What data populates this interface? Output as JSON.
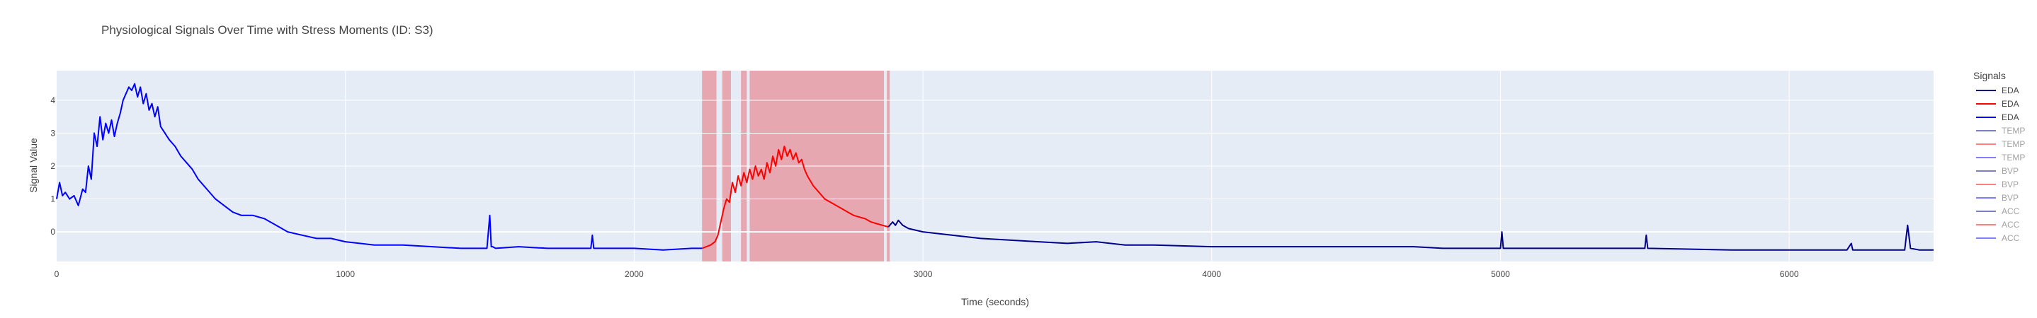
{
  "chart_data": {
    "type": "line",
    "title": "Physiological Signals Over Time with Stress Moments (ID: S3)",
    "xlabel": "Time (seconds)",
    "ylabel": "Signal Value",
    "xlim": [
      0,
      6500
    ],
    "ylim": [
      -0.9,
      4.9
    ],
    "x_ticks": [
      0,
      1000,
      2000,
      3000,
      4000,
      5000,
      6000
    ],
    "y_ticks": [
      0,
      1,
      2,
      3,
      4
    ],
    "grid": true,
    "legend": {
      "title": "Signals",
      "placement": "right",
      "entries": [
        {
          "name": "EDA",
          "color": "#00008b",
          "dimmed": false
        },
        {
          "name": "EDA",
          "color": "#ff0000",
          "dimmed": false
        },
        {
          "name": "EDA",
          "color": "#0000ff",
          "dimmed": false
        },
        {
          "name": "TEMP",
          "color": "#00008b",
          "dimmed": true
        },
        {
          "name": "TEMP",
          "color": "#ff0000",
          "dimmed": true
        },
        {
          "name": "TEMP",
          "color": "#0000ff",
          "dimmed": true
        },
        {
          "name": "BVP",
          "color": "#00008b",
          "dimmed": true
        },
        {
          "name": "BVP",
          "color": "#ff0000",
          "dimmed": true
        },
        {
          "name": "BVP",
          "color": "#0000ff",
          "dimmed": true
        },
        {
          "name": "ACC",
          "color": "#00008b",
          "dimmed": true
        },
        {
          "name": "ACC",
          "color": "#ff0000",
          "dimmed": true
        },
        {
          "name": "ACC",
          "color": "#0000ff",
          "dimmed": true
        }
      ]
    },
    "stress_regions": [
      [
        2235,
        2285
      ],
      [
        2305,
        2335
      ],
      [
        2370,
        2390
      ],
      [
        2400,
        2865
      ],
      [
        2875,
        2885
      ]
    ],
    "stress_color": "#e88a93",
    "series": [
      {
        "name": "EDA",
        "segment": "baseline",
        "color": "#0000ff",
        "x": [
          0,
          10,
          20,
          30,
          45,
          60,
          75,
          90,
          100,
          110,
          120,
          130,
          140,
          150,
          160,
          170,
          180,
          190,
          200,
          210,
          220,
          230,
          240,
          250,
          260,
          270,
          280,
          290,
          300,
          310,
          320,
          330,
          340,
          350,
          360,
          375,
          390,
          410,
          430,
          450,
          470,
          490,
          520,
          550,
          580,
          610,
          640,
          680,
          720,
          760,
          800,
          850,
          900,
          950,
          1000,
          1100,
          1200,
          1300,
          1400,
          1490,
          1500,
          1505,
          1510,
          1520,
          1600,
          1700,
          1800,
          1850,
          1855,
          1860,
          1900,
          2000,
          2100,
          2200,
          2235
        ],
        "y": [
          1.0,
          1.5,
          1.1,
          1.2,
          1.0,
          1.1,
          0.8,
          1.3,
          1.2,
          2.0,
          1.6,
          3.0,
          2.6,
          3.5,
          2.8,
          3.3,
          3.0,
          3.4,
          2.9,
          3.3,
          3.6,
          4.0,
          4.2,
          4.4,
          4.3,
          4.5,
          4.1,
          4.4,
          3.9,
          4.2,
          3.7,
          3.9,
          3.5,
          3.8,
          3.2,
          3.0,
          2.8,
          2.6,
          2.3,
          2.1,
          1.9,
          1.6,
          1.3,
          1.0,
          0.8,
          0.6,
          0.5,
          0.5,
          0.4,
          0.2,
          0.0,
          -0.1,
          -0.2,
          -0.2,
          -0.3,
          -0.4,
          -0.4,
          -0.45,
          -0.5,
          -0.5,
          0.5,
          -0.45,
          -0.45,
          -0.5,
          -0.45,
          -0.5,
          -0.5,
          -0.5,
          -0.1,
          -0.5,
          -0.5,
          -0.5,
          -0.55,
          -0.5,
          -0.5
        ]
      },
      {
        "name": "EDA",
        "segment": "stress",
        "color": "#ff0000",
        "x": [
          2235,
          2250,
          2265,
          2280,
          2290,
          2300,
          2310,
          2320,
          2330,
          2340,
          2350,
          2360,
          2370,
          2380,
          2390,
          2400,
          2410,
          2420,
          2430,
          2440,
          2450,
          2460,
          2470,
          2480,
          2490,
          2500,
          2510,
          2520,
          2530,
          2540,
          2550,
          2560,
          2570,
          2580,
          2590,
          2600,
          2620,
          2640,
          2660,
          2680,
          2700,
          2720,
          2740,
          2760,
          2780,
          2800,
          2820,
          2840,
          2860,
          2880
        ],
        "y": [
          -0.5,
          -0.45,
          -0.4,
          -0.3,
          -0.1,
          0.3,
          0.7,
          1.0,
          0.9,
          1.5,
          1.2,
          1.7,
          1.4,
          1.8,
          1.5,
          1.9,
          1.6,
          2.0,
          1.7,
          1.9,
          1.6,
          2.1,
          1.8,
          2.3,
          2.0,
          2.5,
          2.2,
          2.6,
          2.3,
          2.5,
          2.2,
          2.4,
          2.1,
          2.2,
          1.9,
          1.7,
          1.4,
          1.2,
          1.0,
          0.9,
          0.8,
          0.7,
          0.6,
          0.5,
          0.45,
          0.4,
          0.3,
          0.25,
          0.2,
          0.15
        ]
      },
      {
        "name": "EDA",
        "segment": "recovery",
        "color": "#00008b",
        "x": [
          2880,
          2895,
          2905,
          2915,
          2930,
          2950,
          3000,
          3100,
          3200,
          3300,
          3400,
          3500,
          3600,
          3700,
          3800,
          4000,
          4200,
          4500,
          4700,
          4800,
          5000,
          5005,
          5010,
          5100,
          5500,
          5505,
          5510,
          5800,
          6000,
          6200,
          6215,
          6220,
          6300,
          6400,
          6410,
          6420,
          6450,
          6500
        ],
        "y": [
          0.15,
          0.3,
          0.2,
          0.35,
          0.2,
          0.1,
          0.0,
          -0.1,
          -0.2,
          -0.25,
          -0.3,
          -0.35,
          -0.3,
          -0.4,
          -0.4,
          -0.45,
          -0.45,
          -0.45,
          -0.45,
          -0.5,
          -0.5,
          0.0,
          -0.5,
          -0.5,
          -0.5,
          -0.1,
          -0.5,
          -0.55,
          -0.55,
          -0.55,
          -0.35,
          -0.55,
          -0.55,
          -0.55,
          0.2,
          -0.5,
          -0.55,
          -0.55
        ]
      }
    ]
  }
}
